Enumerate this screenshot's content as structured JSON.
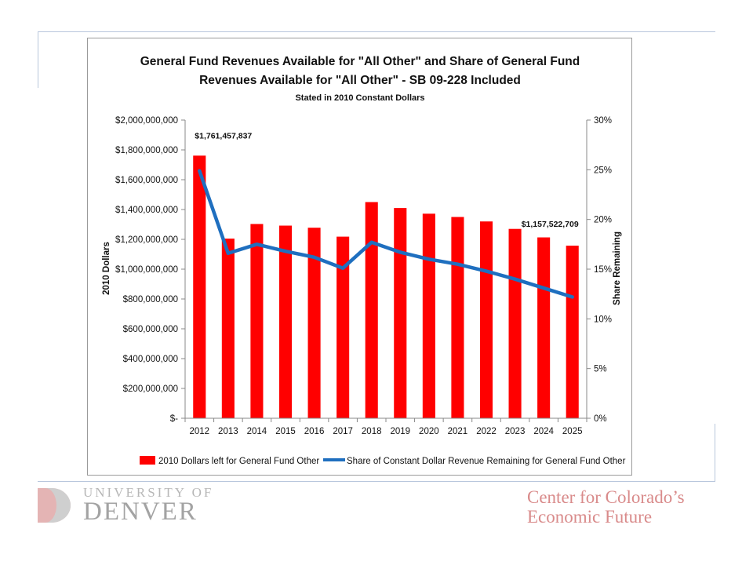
{
  "chart_data": {
    "type": "bar",
    "title_lines": [
      "General Fund Revenues Available for \"All Other\" and Share of General Fund",
      "Revenues Available for \"All Other\"  - SB 09-228 Included"
    ],
    "subtitle": "Stated in 2010 Constant Dollars",
    "categories": [
      "2012",
      "2013",
      "2014",
      "2015",
      "2016",
      "2017",
      "2018",
      "2019",
      "2020",
      "2021",
      "2022",
      "2023",
      "2024",
      "2025"
    ],
    "series": [
      {
        "name": "2010 Dollars left for General Fund Other",
        "type": "bar",
        "axis": "left",
        "color": "#ff0000",
        "values": [
          1761457837,
          1205000000,
          1303000000,
          1292000000,
          1278000000,
          1218000000,
          1450000000,
          1410000000,
          1372000000,
          1350000000,
          1320000000,
          1270000000,
          1213000000,
          1157522709
        ]
      },
      {
        "name": "Share of Constant Dollar Revenue Remaining for General Fund Other",
        "type": "line",
        "axis": "right",
        "color": "#1f6fbf",
        "values": [
          0.249,
          0.166,
          0.175,
          0.168,
          0.162,
          0.151,
          0.177,
          0.167,
          0.16,
          0.155,
          0.148,
          0.14,
          0.131,
          0.122
        ]
      }
    ],
    "ylabel": "2010 Dollars",
    "y2label": "Share Remaining",
    "ylim": [
      0,
      2000000000
    ],
    "y2lim": [
      0,
      0.3
    ],
    "yticks": [
      0,
      200000000,
      400000000,
      600000000,
      800000000,
      1000000000,
      1200000000,
      1400000000,
      1600000000,
      1800000000,
      2000000000
    ],
    "ytick_labels": [
      "$-",
      "$200,000,000",
      "$400,000,000",
      "$600,000,000",
      "$800,000,000",
      "$1,000,000,000",
      "$1,200,000,000",
      "$1,400,000,000",
      "$1,600,000,000",
      "$1,800,000,000",
      "$2,000,000,000"
    ],
    "y2ticks": [
      0,
      0.05,
      0.1,
      0.15,
      0.2,
      0.25,
      0.3
    ],
    "y2tick_labels": [
      "0%",
      "5%",
      "10%",
      "15%",
      "20%",
      "25%",
      "30%"
    ],
    "grid": false,
    "legend": "bottom",
    "annotations": [
      {
        "category": "2012",
        "text": "$1,761,457,837"
      },
      {
        "category": "2025",
        "text": "$1,157,522,709"
      }
    ]
  },
  "logos": {
    "university": {
      "line1": "UNIVERSITY OF",
      "line2": "DENVER"
    },
    "center": {
      "line1": "Center for Colorado’s",
      "line2": "Economic Future"
    }
  }
}
